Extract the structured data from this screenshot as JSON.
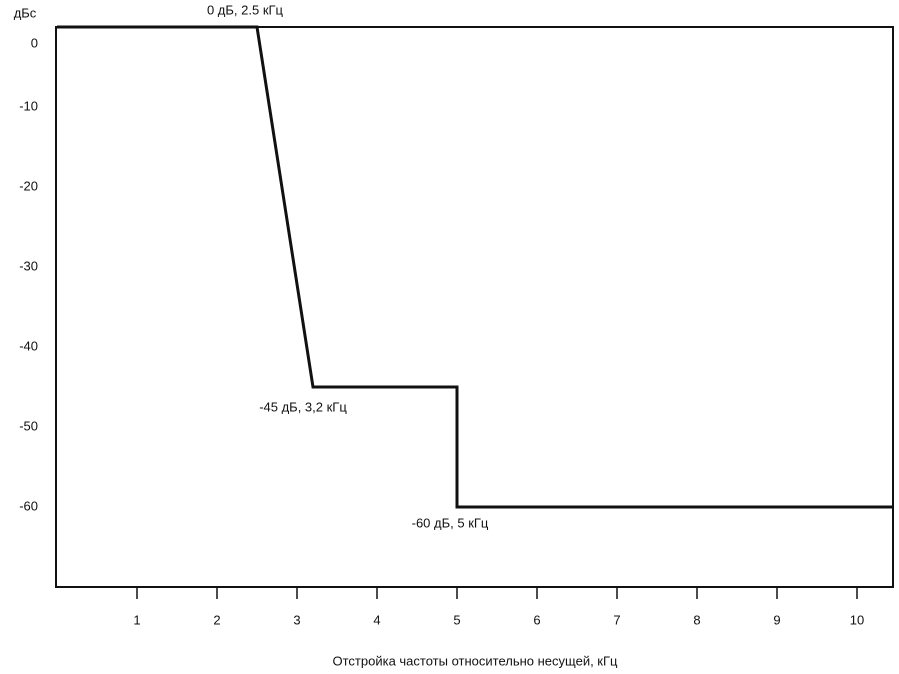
{
  "chart_data": {
    "type": "line",
    "y_label": "дБс",
    "x_label": "Отстройка частоты относительно несущей, кГц",
    "annotations": [
      "0 дБ, 2.5 кГц",
      "-45 дБ, 3,2 кГц",
      "-60 дБ, 5 кГц"
    ],
    "x": [
      0,
      2.5,
      3.2,
      5,
      5,
      10.45
    ],
    "series": [
      {
        "color": "#111111",
        "values": [
          0,
          0,
          -45,
          -45,
          -60,
          -60
        ]
      }
    ],
    "xlim": [
      0,
      10.45
    ],
    "ylim": [
      -70,
      0
    ],
    "xticks": [
      1,
      2,
      3,
      4,
      5,
      6,
      7,
      8,
      9,
      10
    ],
    "yticks": [
      0,
      -10,
      -20,
      -30,
      -40,
      -50,
      -60
    ],
    "grid": false
  }
}
